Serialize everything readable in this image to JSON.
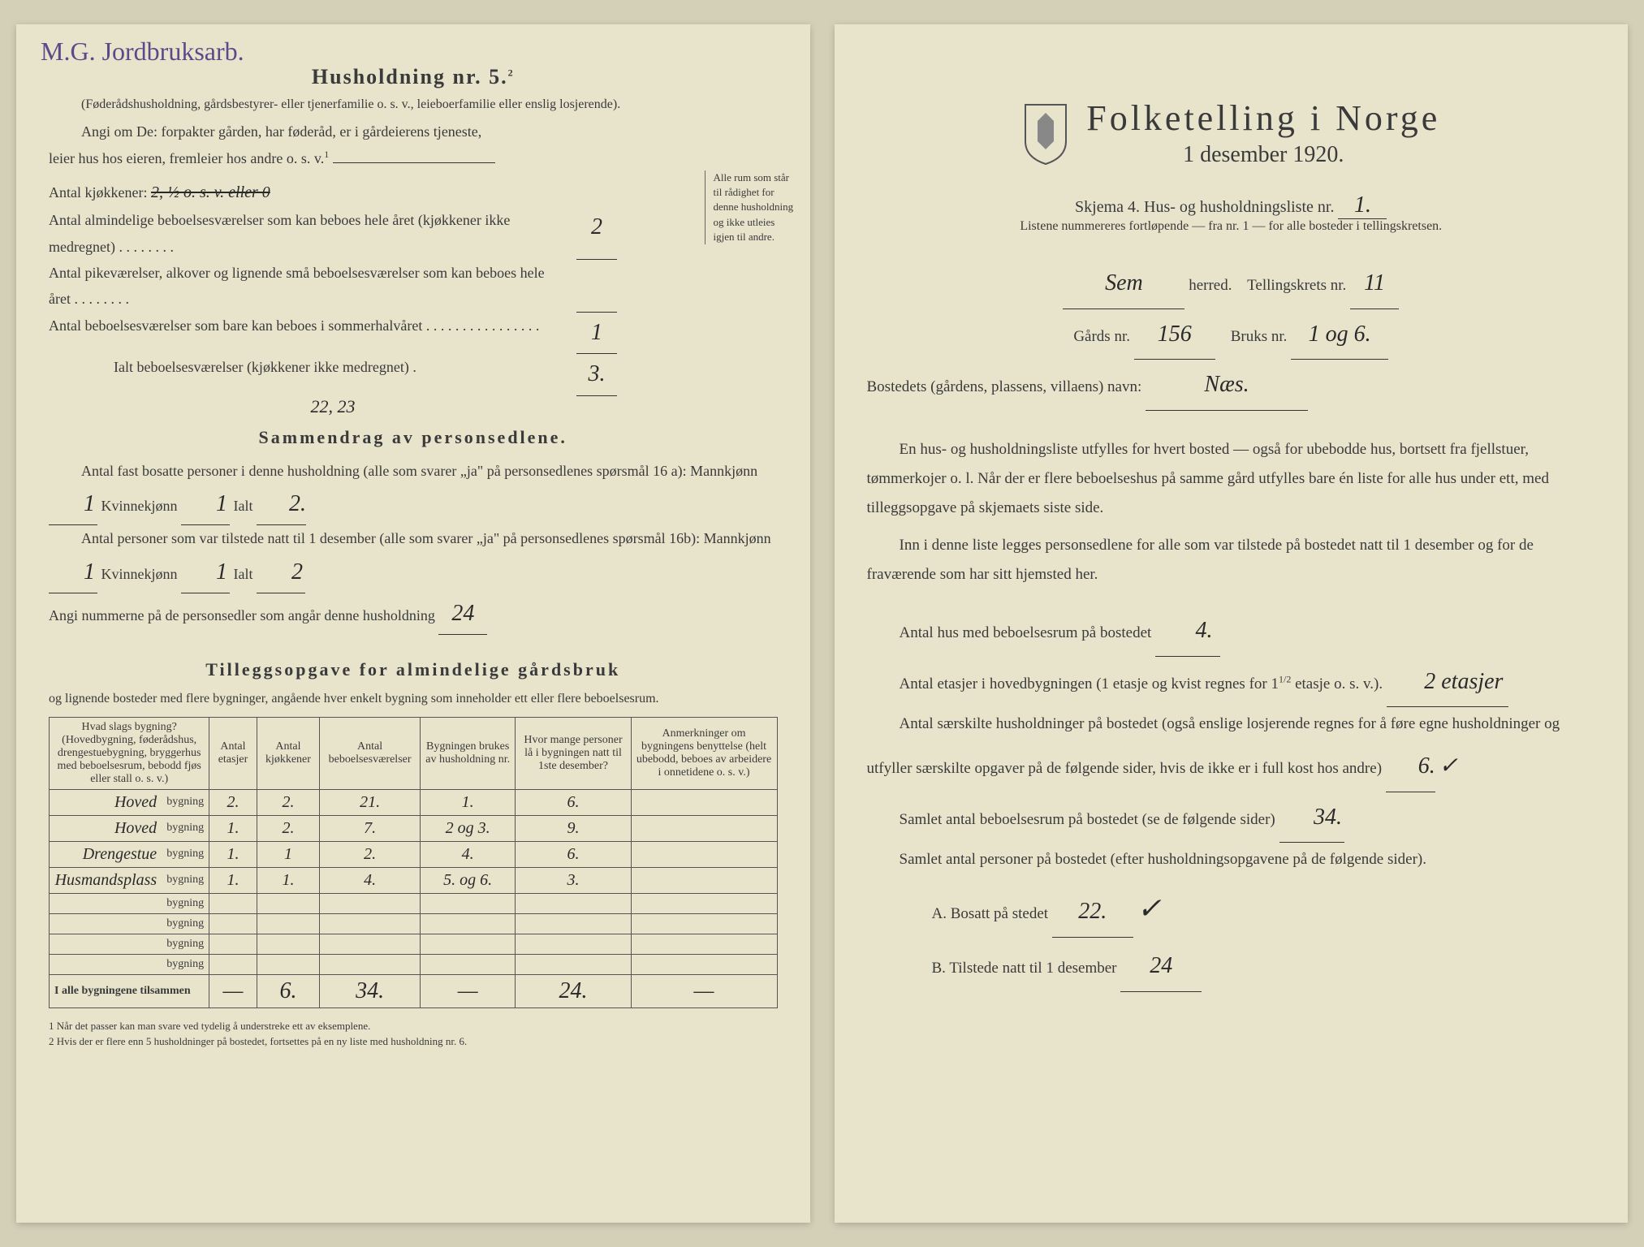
{
  "left": {
    "margin_note": "M.G. Jordbruksarb.",
    "header": "Husholdning nr. 5.",
    "header_super": "2",
    "desc": "(Føderådshusholdning, gårdsbestyrer- eller tjenerfamilie o. s. v., leieboerfamilie eller enslig losjerende).",
    "angi_line1": "Angi om De: forpakter gården, har føderåd, er i gårdeierens tjeneste,",
    "angi_line2": "leier hus hos eieren, fremleier hos andre o. s. v.",
    "angi_super": "1",
    "kjokken_label": "Antal kjøkkener:",
    "kjokken_struck": "2, ½ o. s. v. eller 0",
    "rooms_label1": "Antal almindelige beboelsesværelser som kan beboes hele året (kjøkkener ikke medregnet) . . . . . . . .",
    "rooms_val1": "2",
    "rooms_label2": "Antal pikeværelser, alkover og lignende små beboelsesværelser som kan beboes hele året . . . . . . . .",
    "rooms_val2": "",
    "rooms_label3": "Antal beboelsesværelser som bare kan beboes i sommerhalvåret . . . . . . . . . . . . . . . .",
    "rooms_val3": "1",
    "ialt_label": "Ialt beboelsesværelser (kjøkkener ikke medregnet) .",
    "ialt_val": "3.",
    "page_nums": "22, 23",
    "sidebar": "Alle rum som står til rådighet for denne husholdning og ikke utleies igjen til andre.",
    "sammendrag_title": "Sammendrag av personsedlene.",
    "samm_line1a": "Antal fast bosatte personer i denne husholdning (alle som svarer „ja\" på personsedlenes spørsmål 16 a): Mannkjønn",
    "samm_m1": "1",
    "samm_k_label": "Kvinnekjønn",
    "samm_k1": "1",
    "samm_ialt_label": "Ialt",
    "samm_ialt1": "2.",
    "samm_line2a": "Antal personer som var tilstede natt til 1 desember (alle som svarer „ja\" på personsedlenes spørsmål 16b): Mannkjønn",
    "samm_m2": "1",
    "samm_k2": "1",
    "samm_ialt2": "2",
    "angi_num_label": "Angi nummerne på de personsedler som angår denne husholdning",
    "angi_num_val": "24",
    "tillegg_title": "Tilleggsopgave for almindelige gårdsbruk",
    "tillegg_sub": "og lignende bosteder med flere bygninger, angående hver enkelt bygning som inneholder ett eller flere beboelsesrum.",
    "table": {
      "headers": [
        "Hvad slags bygning?\n(Hovedbygning, føderådshus, drengestuebygning, bryggerhus med beboelsesrum, bebodd fjøs eller stall o. s. v.)",
        "Antal etasjer",
        "Antal kjøkkener",
        "Antal beboelsesværelser",
        "Bygningen brukes av husholdning nr.",
        "Hvor mange personer lå i bygningen natt til 1ste desember?",
        "Anmerkninger om bygningens benyttelse (helt ubebodd, beboes av arbeidere i onnetidene o. s. v.)"
      ],
      "rows": [
        [
          "Hoved",
          "bygning",
          "2.",
          "2.",
          "21.",
          "1.",
          "6.",
          ""
        ],
        [
          "Hoved",
          "bygning",
          "1.",
          "2.",
          "7.",
          "2 og 3.",
          "9.",
          ""
        ],
        [
          "Drengestue",
          "bygning",
          "1.",
          "1",
          "2.",
          "4.",
          "6.",
          ""
        ],
        [
          "Husmandsplass",
          "bygning",
          "1.",
          "1.",
          "4.",
          "5. og 6.",
          "3.",
          ""
        ],
        [
          "",
          "bygning",
          "",
          "",
          "",
          "",
          "",
          ""
        ],
        [
          "",
          "bygning",
          "",
          "",
          "",
          "",
          "",
          ""
        ],
        [
          "",
          "bygning",
          "",
          "",
          "",
          "",
          "",
          ""
        ],
        [
          "",
          "bygning",
          "",
          "",
          "",
          "",
          "",
          ""
        ]
      ],
      "total_label": "I alle bygningene tilsammen",
      "totals": [
        "—",
        "6.",
        "34.",
        "—",
        "24.",
        "—"
      ]
    },
    "footnote1": "1 Når det passer kan man svare ved tydelig å understreke ett av eksemplene.",
    "footnote2": "2 Hvis der er flere enn 5 husholdninger på bostedet, fortsettes på en ny liste med husholdning nr. 6."
  },
  "right": {
    "title": "Folketelling i Norge",
    "date": "1 desember 1920.",
    "skjema_label": "Skjema 4. Hus- og husholdningsliste nr.",
    "skjema_val": "1.",
    "listene": "Listene nummereres fortløpende — fra nr. 1 — for alle bosteder i tellingskretsen.",
    "herred_val": "Sem",
    "herred_label": "herred.",
    "krets_label": "Tellingskrets nr.",
    "krets_val": "11",
    "gards_label": "Gårds nr.",
    "gards_val": "156",
    "bruks_label": "Bruks nr.",
    "bruks_val": "1 og 6.",
    "bosted_label": "Bostedets (gårdens, plassens, villaens) navn:",
    "bosted_val": "Næs.",
    "para1": "En hus- og husholdningsliste utfylles for hvert bosted — også for ubebodde hus, bortsett fra fjellstuer, tømmerkojer o. l. Når der er flere beboelseshus på samme gård utfylles bare én liste for alle hus under ett, med tilleggsopgave på skjemaets siste side.",
    "para2": "Inn i denne liste legges personsedlene for alle som var tilstede på bostedet natt til 1 desember og for de fraværende som har sitt hjemsted her.",
    "antal_hus_label": "Antal hus med beboelsesrum på bostedet",
    "antal_hus_val": "4.",
    "etasjer_label1": "Antal etasjer i hovedbygningen (1 etasje og kvist regnes for 1",
    "etasjer_frac": "1/2",
    "etasjer_label2": "etasje o. s. v.).",
    "etasjer_val": "2 etasjer",
    "saerskilte_label": "Antal særskilte husholdninger på bostedet (også enslige losjerende regnes for å føre egne husholdninger og utfyller særskilte opgaver på de følgende sider, hvis de ikke er i full kost hos andre)",
    "saerskilte_val": "6.",
    "samlet_rum_label": "Samlet antal beboelsesrum på bostedet (se de følgende sider)",
    "samlet_rum_val": "34.",
    "samlet_pers_label": "Samlet antal personer på bostedet (efter husholdningsopgavene på de følgende sider).",
    "bosatt_label": "A. Bosatt på stedet",
    "bosatt_val": "22.",
    "tilstede_label": "B. Tilstede natt til 1 desember",
    "tilstede_val": "24"
  },
  "colors": {
    "paper": "#e8e4cc",
    "ink": "#3a3a3a",
    "handwriting_purple": "#5a4a8a",
    "handwriting_black": "#2a2a2a"
  }
}
